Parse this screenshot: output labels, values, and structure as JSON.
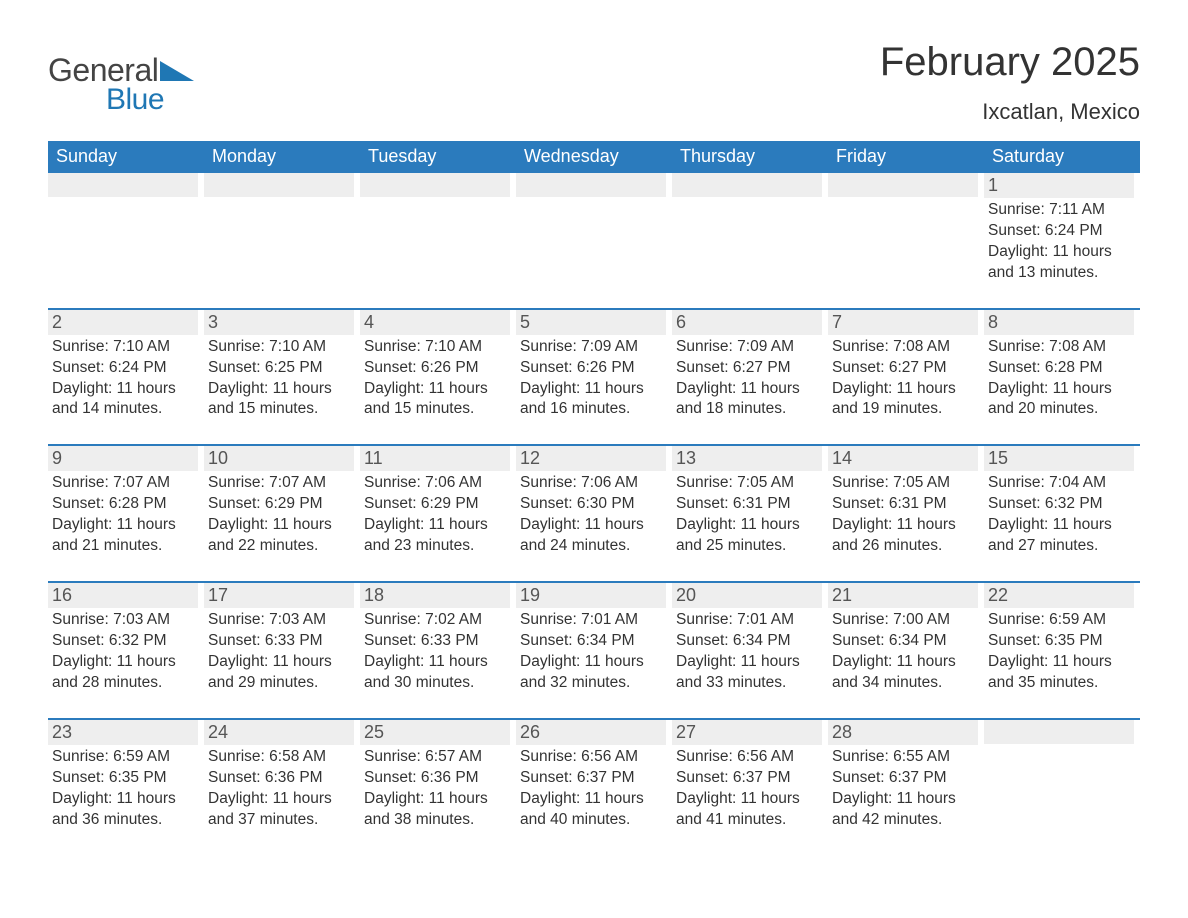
{
  "brand": {
    "text_general": "General",
    "text_blue": "Blue",
    "accent_color": "#1f77b4"
  },
  "title": {
    "month_year": "February 2025",
    "location": "Ixcatlan, Mexico"
  },
  "colors": {
    "header_bg": "#2b7bbd",
    "header_text": "#ffffff",
    "daybar_bg": "#eeeeee",
    "text": "#333333",
    "page_bg": "#ffffff"
  },
  "weekdays": [
    "Sunday",
    "Monday",
    "Tuesday",
    "Wednesday",
    "Thursday",
    "Friday",
    "Saturday"
  ],
  "weeks": [
    [
      {
        "day": "",
        "sunrise": "",
        "sunset": "",
        "daylight": ""
      },
      {
        "day": "",
        "sunrise": "",
        "sunset": "",
        "daylight": ""
      },
      {
        "day": "",
        "sunrise": "",
        "sunset": "",
        "daylight": ""
      },
      {
        "day": "",
        "sunrise": "",
        "sunset": "",
        "daylight": ""
      },
      {
        "day": "",
        "sunrise": "",
        "sunset": "",
        "daylight": ""
      },
      {
        "day": "",
        "sunrise": "",
        "sunset": "",
        "daylight": ""
      },
      {
        "day": "1",
        "sunrise": "Sunrise: 7:11 AM",
        "sunset": "Sunset: 6:24 PM",
        "daylight": "Daylight: 11 hours and 13 minutes."
      }
    ],
    [
      {
        "day": "2",
        "sunrise": "Sunrise: 7:10 AM",
        "sunset": "Sunset: 6:24 PM",
        "daylight": "Daylight: 11 hours and 14 minutes."
      },
      {
        "day": "3",
        "sunrise": "Sunrise: 7:10 AM",
        "sunset": "Sunset: 6:25 PM",
        "daylight": "Daylight: 11 hours and 15 minutes."
      },
      {
        "day": "4",
        "sunrise": "Sunrise: 7:10 AM",
        "sunset": "Sunset: 6:26 PM",
        "daylight": "Daylight: 11 hours and 15 minutes."
      },
      {
        "day": "5",
        "sunrise": "Sunrise: 7:09 AM",
        "sunset": "Sunset: 6:26 PM",
        "daylight": "Daylight: 11 hours and 16 minutes."
      },
      {
        "day": "6",
        "sunrise": "Sunrise: 7:09 AM",
        "sunset": "Sunset: 6:27 PM",
        "daylight": "Daylight: 11 hours and 18 minutes."
      },
      {
        "day": "7",
        "sunrise": "Sunrise: 7:08 AM",
        "sunset": "Sunset: 6:27 PM",
        "daylight": "Daylight: 11 hours and 19 minutes."
      },
      {
        "day": "8",
        "sunrise": "Sunrise: 7:08 AM",
        "sunset": "Sunset: 6:28 PM",
        "daylight": "Daylight: 11 hours and 20 minutes."
      }
    ],
    [
      {
        "day": "9",
        "sunrise": "Sunrise: 7:07 AM",
        "sunset": "Sunset: 6:28 PM",
        "daylight": "Daylight: 11 hours and 21 minutes."
      },
      {
        "day": "10",
        "sunrise": "Sunrise: 7:07 AM",
        "sunset": "Sunset: 6:29 PM",
        "daylight": "Daylight: 11 hours and 22 minutes."
      },
      {
        "day": "11",
        "sunrise": "Sunrise: 7:06 AM",
        "sunset": "Sunset: 6:29 PM",
        "daylight": "Daylight: 11 hours and 23 minutes."
      },
      {
        "day": "12",
        "sunrise": "Sunrise: 7:06 AM",
        "sunset": "Sunset: 6:30 PM",
        "daylight": "Daylight: 11 hours and 24 minutes."
      },
      {
        "day": "13",
        "sunrise": "Sunrise: 7:05 AM",
        "sunset": "Sunset: 6:31 PM",
        "daylight": "Daylight: 11 hours and 25 minutes."
      },
      {
        "day": "14",
        "sunrise": "Sunrise: 7:05 AM",
        "sunset": "Sunset: 6:31 PM",
        "daylight": "Daylight: 11 hours and 26 minutes."
      },
      {
        "day": "15",
        "sunrise": "Sunrise: 7:04 AM",
        "sunset": "Sunset: 6:32 PM",
        "daylight": "Daylight: 11 hours and 27 minutes."
      }
    ],
    [
      {
        "day": "16",
        "sunrise": "Sunrise: 7:03 AM",
        "sunset": "Sunset: 6:32 PM",
        "daylight": "Daylight: 11 hours and 28 minutes."
      },
      {
        "day": "17",
        "sunrise": "Sunrise: 7:03 AM",
        "sunset": "Sunset: 6:33 PM",
        "daylight": "Daylight: 11 hours and 29 minutes."
      },
      {
        "day": "18",
        "sunrise": "Sunrise: 7:02 AM",
        "sunset": "Sunset: 6:33 PM",
        "daylight": "Daylight: 11 hours and 30 minutes."
      },
      {
        "day": "19",
        "sunrise": "Sunrise: 7:01 AM",
        "sunset": "Sunset: 6:34 PM",
        "daylight": "Daylight: 11 hours and 32 minutes."
      },
      {
        "day": "20",
        "sunrise": "Sunrise: 7:01 AM",
        "sunset": "Sunset: 6:34 PM",
        "daylight": "Daylight: 11 hours and 33 minutes."
      },
      {
        "day": "21",
        "sunrise": "Sunrise: 7:00 AM",
        "sunset": "Sunset: 6:34 PM",
        "daylight": "Daylight: 11 hours and 34 minutes."
      },
      {
        "day": "22",
        "sunrise": "Sunrise: 6:59 AM",
        "sunset": "Sunset: 6:35 PM",
        "daylight": "Daylight: 11 hours and 35 minutes."
      }
    ],
    [
      {
        "day": "23",
        "sunrise": "Sunrise: 6:59 AM",
        "sunset": "Sunset: 6:35 PM",
        "daylight": "Daylight: 11 hours and 36 minutes."
      },
      {
        "day": "24",
        "sunrise": "Sunrise: 6:58 AM",
        "sunset": "Sunset: 6:36 PM",
        "daylight": "Daylight: 11 hours and 37 minutes."
      },
      {
        "day": "25",
        "sunrise": "Sunrise: 6:57 AM",
        "sunset": "Sunset: 6:36 PM",
        "daylight": "Daylight: 11 hours and 38 minutes."
      },
      {
        "day": "26",
        "sunrise": "Sunrise: 6:56 AM",
        "sunset": "Sunset: 6:37 PM",
        "daylight": "Daylight: 11 hours and 40 minutes."
      },
      {
        "day": "27",
        "sunrise": "Sunrise: 6:56 AM",
        "sunset": "Sunset: 6:37 PM",
        "daylight": "Daylight: 11 hours and 41 minutes."
      },
      {
        "day": "28",
        "sunrise": "Sunrise: 6:55 AM",
        "sunset": "Sunset: 6:37 PM",
        "daylight": "Daylight: 11 hours and 42 minutes."
      },
      {
        "day": "",
        "sunrise": "",
        "sunset": "",
        "daylight": ""
      }
    ]
  ]
}
